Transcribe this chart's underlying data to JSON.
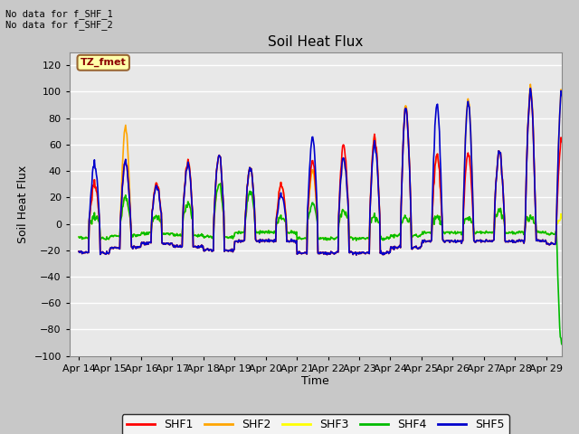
{
  "title": "Soil Heat Flux",
  "ylabel": "Soil Heat Flux",
  "xlabel": "Time",
  "ylim": [
    -100,
    130
  ],
  "yticks": [
    -100,
    -80,
    -60,
    -40,
    -20,
    0,
    20,
    40,
    60,
    80,
    100,
    120
  ],
  "annotation_top": "No data for f_SHF_1\nNo data for f_SHF_2",
  "box_label": "TZ_fmet",
  "legend_labels": [
    "SHF1",
    "SHF2",
    "SHF3",
    "SHF4",
    "SHF5"
  ],
  "colors": {
    "SHF1": "#FF0000",
    "SHF2": "#FFA500",
    "SHF3": "#FFFF00",
    "SHF4": "#00BB00",
    "SHF5": "#0000CC"
  },
  "fig_bg": "#C8C8C8",
  "plot_bg": "#E8E8E8",
  "xtick_labels": [
    "Apr 14",
    "Apr 15",
    "Apr 16",
    "Apr 17",
    "Apr 18",
    "Apr 19",
    "Apr 20",
    "Apr 21",
    "Apr 22",
    "Apr 23",
    "Apr 24",
    "Apr 25",
    "Apr 26",
    "Apr 27",
    "Apr 28",
    "Apr 29"
  ],
  "xtick_positions": [
    14,
    15,
    16,
    17,
    18,
    19,
    20,
    21,
    22,
    23,
    24,
    25,
    26,
    27,
    28,
    29
  ]
}
